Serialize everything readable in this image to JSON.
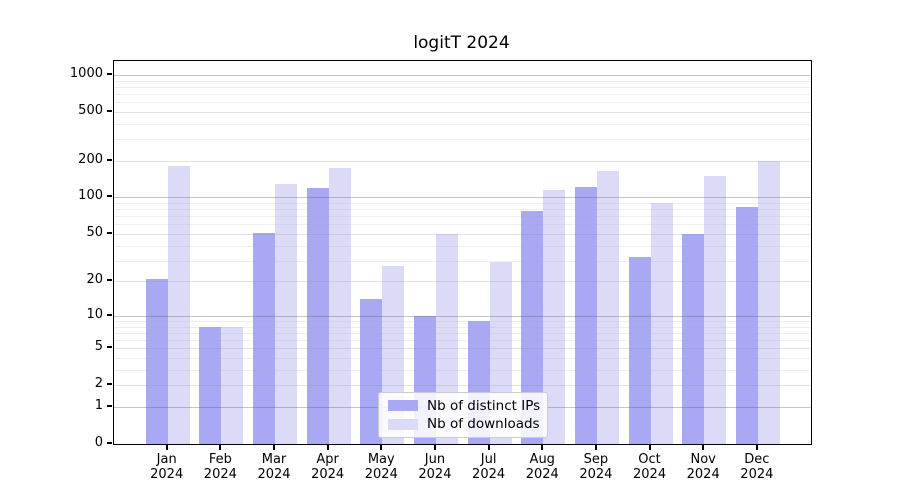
{
  "title": "logitT 2024",
  "colors": {
    "ips_bar": "#a8a8f5",
    "downloads_bar": "#dbdbf8",
    "grid_major": "rgba(100,100,100,0.38)",
    "grid_mid": "rgba(140,140,140,0.25)",
    "grid_minor": "rgba(170,170,170,0.20)",
    "axis": "#000000"
  },
  "legend": {
    "items": [
      {
        "label": "Nb of distinct IPs",
        "color_key": "ips_bar"
      },
      {
        "label": "Nb of downloads",
        "color_key": "downloads_bar"
      }
    ]
  },
  "chart_data": {
    "type": "bar",
    "title": "logitT 2024",
    "categories": [
      "Jan 2024",
      "Feb 2024",
      "Mar 2024",
      "Apr 2024",
      "May 2024",
      "Jun 2024",
      "Jul 2024",
      "Aug 2024",
      "Sep 2024",
      "Oct 2024",
      "Nov 2024",
      "Dec 2024"
    ],
    "x_tick_months": [
      "Jan",
      "Feb",
      "Mar",
      "Apr",
      "May",
      "Jun",
      "Jul",
      "Aug",
      "Sep",
      "Oct",
      "Nov",
      "Dec"
    ],
    "x_tick_year": "2024",
    "series": [
      {
        "name": "Nb of distinct IPs",
        "color_key": "ips_bar",
        "values": [
          21,
          8,
          51,
          120,
          14,
          10,
          9,
          78,
          122,
          32,
          50,
          84
        ]
      },
      {
        "name": "Nb of downloads",
        "color_key": "downloads_bar",
        "values": [
          180,
          8,
          130,
          175,
          27,
          50,
          29,
          115,
          165,
          90,
          150,
          199
        ]
      }
    ],
    "ylabel": "",
    "xlabel": "",
    "y_axis": {
      "scale": "log1p",
      "ticks": [
        0,
        1,
        2,
        5,
        10,
        20,
        50,
        100,
        200,
        500,
        1000
      ],
      "major_gridlines": [
        1,
        10,
        100,
        1000
      ],
      "mid_gridlines": [
        2,
        5,
        20,
        50,
        200,
        500
      ],
      "minor_gridlines": [
        3,
        4,
        6,
        7,
        8,
        9,
        30,
        40,
        60,
        70,
        80,
        90,
        300,
        400,
        600,
        700,
        800,
        900
      ]
    },
    "grid": true,
    "legend_position": "lower center"
  }
}
